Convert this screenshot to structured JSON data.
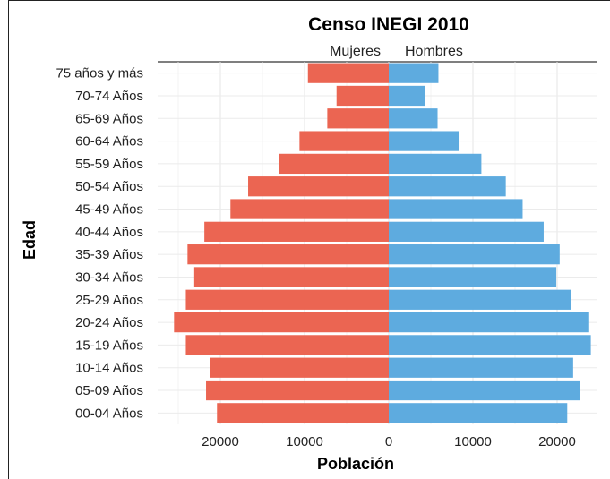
{
  "chart_data": {
    "type": "bar",
    "orientation": "horizontal",
    "layout": "population-pyramid",
    "title": "Censo INEGI 2010",
    "xlabel": "Población",
    "ylabel": "Edad",
    "xlim": [
      -27500,
      24000
    ],
    "x_ticks": [
      -20000,
      -10000,
      0,
      10000,
      20000
    ],
    "x_tick_labels": [
      "20000",
      "10000",
      "0",
      "10000",
      "20000"
    ],
    "grid": true,
    "legend_placement": "top",
    "categories": [
      "00-04 Años",
      "05-09 Años",
      "10-14 Años",
      "15-19 Años",
      "20-24 Años",
      "25-29 Años",
      "30-34 Años",
      "35-39 Años",
      "40-44 Años",
      "45-49 Años",
      "50-54 Años",
      "55-59 Años",
      "60-64  Años",
      "65-69 Años",
      "70-74 Años",
      "75 años y más"
    ],
    "series": [
      {
        "name": "Mujeres",
        "color": "#eb6552",
        "values": [
          20400,
          21700,
          21200,
          24100,
          25500,
          24100,
          23100,
          23900,
          21900,
          18800,
          16700,
          13000,
          10600,
          7300,
          6200,
          9600
        ]
      },
      {
        "name": "Hombres",
        "color": "#5eabdf",
        "values": [
          21200,
          22700,
          21900,
          24000,
          23700,
          21700,
          19900,
          20300,
          18400,
          15900,
          13900,
          11000,
          8300,
          5800,
          4300,
          5900
        ]
      }
    ]
  }
}
